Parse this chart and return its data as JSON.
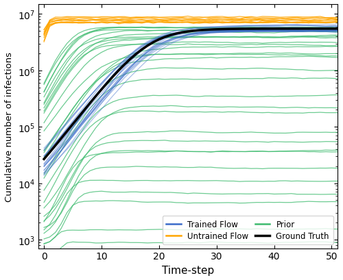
{
  "title": "",
  "xlabel": "Time-step",
  "ylabel": "Cumulative number of infections",
  "xlim": [
    -1,
    51
  ],
  "ylim_log": [
    700,
    15000000.0
  ],
  "xticks": [
    0,
    10,
    20,
    30,
    40,
    50
  ],
  "n_timesteps": 52,
  "trained_flow_color": "#3a6bc9",
  "untrained_flow_color": "#FFA500",
  "prior_color": "#3dbb6e",
  "ground_truth_color": "#000000",
  "figsize": [
    5.0,
    4.1
  ],
  "dpi": 100
}
